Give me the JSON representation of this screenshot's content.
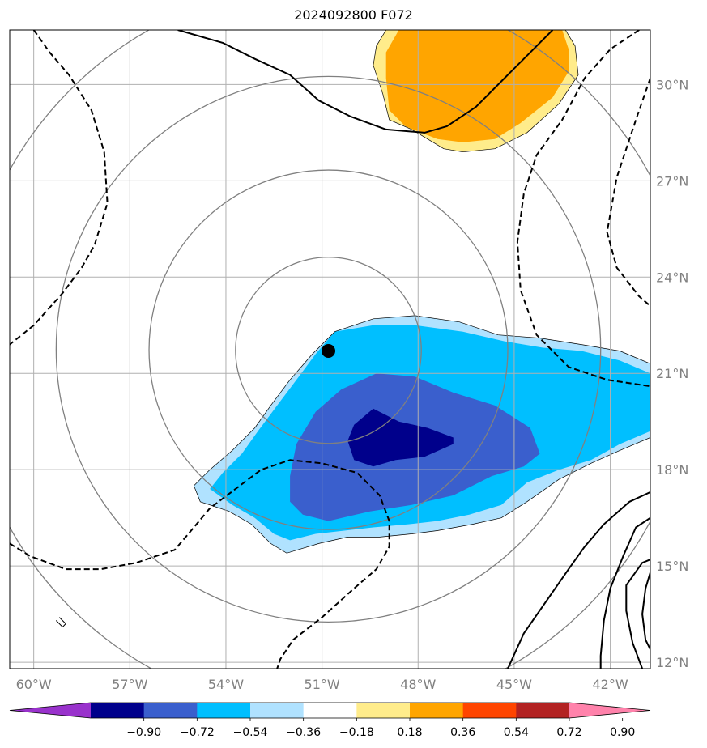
{
  "chart_data": {
    "type": "map-contour",
    "title": "2024092800 F072",
    "x_axis": {
      "range_deg": [
        -60.75,
        -40.75
      ],
      "ticks": [
        {
          "value": -60,
          "label": "60°W"
        },
        {
          "value": -57,
          "label": "57°W"
        },
        {
          "value": -54,
          "label": "54°W"
        },
        {
          "value": -51,
          "label": "51°W"
        },
        {
          "value": -48,
          "label": "48°W"
        },
        {
          "value": -45,
          "label": "45°W"
        },
        {
          "value": -42,
          "label": "42°W"
        }
      ]
    },
    "y_axis": {
      "range_deg": [
        11.8,
        31.7
      ],
      "ticks": [
        {
          "value": 12,
          "label": "12°N"
        },
        {
          "value": 15,
          "label": "15°N"
        },
        {
          "value": 18,
          "label": "18°N"
        },
        {
          "value": 21,
          "label": "21°N"
        },
        {
          "value": 24,
          "label": "24°N"
        },
        {
          "value": 27,
          "label": "27°N"
        },
        {
          "value": 30,
          "label": "30°N"
        }
      ],
      "labels_side": "right"
    },
    "grid": true,
    "center_marker": {
      "lon": -50.8,
      "lat": 21.7
    },
    "range_rings_deg": [
      2.9,
      5.6,
      8.5,
      11.4
    ],
    "colorbar": {
      "orientation": "horizontal",
      "extend": "both",
      "levels": [
        -0.9,
        -0.72,
        -0.54,
        -0.36,
        -0.18,
        0.18,
        0.36,
        0.54,
        0.72,
        0.9
      ],
      "tick_labels": [
        "−0.90",
        "−0.72",
        "−0.54",
        "−0.36",
        "−0.18",
        "0.18",
        "0.36",
        "0.54",
        "0.72",
        "0.90"
      ],
      "colors": [
        "#9932cc",
        "#00008b",
        "#3a5fcd",
        "#00bfff",
        "#b0e2ff",
        "#ffffff",
        "#ffec8b",
        "#ffa500",
        "#ff4500",
        "#b22222",
        "#ff82ab"
      ]
    },
    "filled_regions": [
      {
        "level": "-0.36 to -0.18",
        "color": "#b0e2ff",
        "polygon": [
          [
            -55.0,
            17.5
          ],
          [
            -54.5,
            18.0
          ],
          [
            -53.8,
            18.6
          ],
          [
            -53.1,
            19.3
          ],
          [
            -52.6,
            20.0
          ],
          [
            -52.0,
            20.8
          ],
          [
            -51.3,
            21.6
          ],
          [
            -50.6,
            22.3
          ],
          [
            -49.4,
            22.7
          ],
          [
            -48.1,
            22.8
          ],
          [
            -46.7,
            22.6
          ],
          [
            -45.5,
            22.2
          ],
          [
            -44.2,
            22.1
          ],
          [
            -42.9,
            21.9
          ],
          [
            -41.7,
            21.7
          ],
          [
            -40.75,
            21.3
          ],
          [
            -40.75,
            19.0
          ],
          [
            -41.7,
            18.6
          ],
          [
            -42.6,
            18.2
          ],
          [
            -43.6,
            17.7
          ],
          [
            -44.6,
            17.0
          ],
          [
            -45.4,
            16.5
          ],
          [
            -46.3,
            16.3
          ],
          [
            -47.4,
            16.1
          ],
          [
            -48.2,
            16.0
          ],
          [
            -49.2,
            15.9
          ],
          [
            -50.2,
            15.9
          ],
          [
            -51.1,
            15.7
          ],
          [
            -52.1,
            15.4
          ],
          [
            -52.6,
            15.7
          ],
          [
            -53.2,
            16.3
          ],
          [
            -53.9,
            16.7
          ],
          [
            -54.8,
            17.0
          ]
        ]
      },
      {
        "level": "-0.54 to -0.36",
        "color": "#00bfff",
        "polygon": [
          [
            -54.5,
            17.4
          ],
          [
            -54.1,
            17.9
          ],
          [
            -53.5,
            18.5
          ],
          [
            -53.0,
            19.2
          ],
          [
            -52.4,
            20.0
          ],
          [
            -51.8,
            20.8
          ],
          [
            -51.2,
            21.6
          ],
          [
            -50.6,
            22.3
          ],
          [
            -49.4,
            22.5
          ],
          [
            -48.1,
            22.5
          ],
          [
            -46.6,
            22.3
          ],
          [
            -45.3,
            22.0
          ],
          [
            -44.1,
            21.8
          ],
          [
            -42.9,
            21.7
          ],
          [
            -41.7,
            21.4
          ],
          [
            -40.75,
            21.0
          ],
          [
            -40.75,
            19.2
          ],
          [
            -41.7,
            18.8
          ],
          [
            -42.6,
            18.3
          ],
          [
            -43.6,
            18.0
          ],
          [
            -44.6,
            17.6
          ],
          [
            -45.4,
            16.9
          ],
          [
            -46.4,
            16.6
          ],
          [
            -47.4,
            16.4
          ],
          [
            -48.3,
            16.3
          ],
          [
            -49.4,
            16.2
          ],
          [
            -50.3,
            16.1
          ],
          [
            -51.2,
            16.0
          ],
          [
            -52.0,
            15.8
          ],
          [
            -52.5,
            16.0
          ],
          [
            -53.1,
            16.5
          ],
          [
            -53.8,
            16.9
          ]
        ]
      },
      {
        "level": "-0.72 to -0.54",
        "color": "#3a5fcd",
        "polygon": [
          [
            -52.0,
            17.8
          ],
          [
            -51.8,
            18.8
          ],
          [
            -51.2,
            19.8
          ],
          [
            -50.4,
            20.5
          ],
          [
            -49.3,
            21.0
          ],
          [
            -48.1,
            20.9
          ],
          [
            -46.9,
            20.4
          ],
          [
            -45.6,
            20.0
          ],
          [
            -44.5,
            19.3
          ],
          [
            -44.2,
            18.5
          ],
          [
            -44.7,
            18.1
          ],
          [
            -45.7,
            17.8
          ],
          [
            -46.9,
            17.2
          ],
          [
            -48.2,
            16.9
          ],
          [
            -49.5,
            16.7
          ],
          [
            -50.8,
            16.4
          ],
          [
            -51.6,
            16.6
          ],
          [
            -52.0,
            17.0
          ]
        ]
      },
      {
        "level": "-0.90 to -0.72",
        "color": "#00008b",
        "polygon": [
          [
            -50.0,
            19.4
          ],
          [
            -49.4,
            19.9
          ],
          [
            -48.6,
            19.5
          ],
          [
            -47.7,
            19.3
          ],
          [
            -46.9,
            19.0
          ],
          [
            -46.9,
            18.8
          ],
          [
            -47.8,
            18.4
          ],
          [
            -48.7,
            18.3
          ],
          [
            -49.4,
            18.1
          ],
          [
            -50.0,
            18.3
          ],
          [
            -50.2,
            18.9
          ]
        ]
      },
      {
        "level": "0.18 to 0.36",
        "color": "#ffec8b",
        "polygon": [
          [
            -49.0,
            31.7
          ],
          [
            -43.4,
            31.7
          ],
          [
            -43.1,
            31.2
          ],
          [
            -43.0,
            30.3
          ],
          [
            -43.6,
            29.4
          ],
          [
            -44.6,
            28.5
          ],
          [
            -45.6,
            28.0
          ],
          [
            -46.6,
            27.9
          ],
          [
            -47.2,
            28.0
          ],
          [
            -48.2,
            28.6
          ],
          [
            -48.9,
            28.9
          ],
          [
            -49.1,
            29.7
          ],
          [
            -49.4,
            30.6
          ],
          [
            -49.3,
            31.2
          ]
        ]
      },
      {
        "level": "0.36 to 0.54",
        "color": "#ffa500",
        "polygon": [
          [
            -48.6,
            31.7
          ],
          [
            -43.5,
            31.7
          ],
          [
            -43.3,
            31.1
          ],
          [
            -43.3,
            30.4
          ],
          [
            -43.8,
            29.6
          ],
          [
            -44.8,
            28.8
          ],
          [
            -45.6,
            28.3
          ],
          [
            -46.6,
            28.2
          ],
          [
            -47.4,
            28.3
          ],
          [
            -48.4,
            28.7
          ],
          [
            -48.9,
            29.2
          ],
          [
            -49.0,
            30.2
          ],
          [
            -49.0,
            31.0
          ]
        ]
      }
    ],
    "line_contours": [
      {
        "style": "solid",
        "points": [
          [
            -55.5,
            31.7
          ],
          [
            -54.1,
            31.3
          ],
          [
            -53.1,
            30.8
          ],
          [
            -52.0,
            30.3
          ],
          [
            -51.1,
            29.5
          ],
          [
            -50.1,
            29.0
          ],
          [
            -49.0,
            28.6
          ],
          [
            -47.8,
            28.5
          ],
          [
            -47.1,
            28.7
          ],
          [
            -46.2,
            29.3
          ],
          [
            -45.3,
            30.2
          ],
          [
            -44.5,
            31.0
          ],
          [
            -43.8,
            31.7
          ]
        ]
      },
      {
        "style": "solid",
        "points": [
          [
            -41.0,
            11.8
          ],
          [
            -41.3,
            12.6
          ],
          [
            -41.5,
            13.6
          ],
          [
            -41.5,
            14.4
          ],
          [
            -41.0,
            15.1
          ],
          [
            -40.75,
            15.2
          ]
        ]
      },
      {
        "style": "solid",
        "points": [
          [
            -40.75,
            17.3
          ],
          [
            -41.4,
            17.0
          ],
          [
            -42.2,
            16.3
          ],
          [
            -42.8,
            15.6
          ],
          [
            -43.3,
            14.9
          ],
          [
            -44.0,
            13.9
          ],
          [
            -44.7,
            12.9
          ],
          [
            -45.2,
            11.8
          ]
        ]
      },
      {
        "style": "solid",
        "points": [
          [
            -40.75,
            16.5
          ],
          [
            -41.2,
            16.2
          ],
          [
            -41.6,
            15.3
          ],
          [
            -42.0,
            14.3
          ],
          [
            -42.2,
            13.3
          ],
          [
            -42.3,
            12.2
          ],
          [
            -42.3,
            11.8
          ]
        ]
      },
      {
        "style": "solid",
        "points": [
          [
            -40.75,
            14.8
          ],
          [
            -40.9,
            14.3
          ],
          [
            -41.0,
            13.5
          ],
          [
            -40.9,
            12.7
          ],
          [
            -40.75,
            12.4
          ]
        ]
      },
      {
        "style": "dashed",
        "points": [
          [
            -60.0,
            31.7
          ],
          [
            -59.5,
            31.0
          ],
          [
            -58.9,
            30.3
          ],
          [
            -58.2,
            29.2
          ],
          [
            -57.8,
            27.9
          ],
          [
            -57.7,
            26.3
          ],
          [
            -58.1,
            25.0
          ],
          [
            -58.5,
            24.3
          ],
          [
            -59.1,
            23.5
          ],
          [
            -60.0,
            22.5
          ],
          [
            -60.75,
            21.9
          ]
        ]
      },
      {
        "style": "dashed",
        "points": [
          [
            -60.75,
            15.7
          ],
          [
            -60.1,
            15.3
          ],
          [
            -59.0,
            14.9
          ],
          [
            -57.9,
            14.9
          ],
          [
            -56.8,
            15.1
          ],
          [
            -55.6,
            15.5
          ],
          [
            -55.0,
            16.2
          ],
          [
            -54.5,
            16.8
          ],
          [
            -53.7,
            17.4
          ],
          [
            -52.9,
            18.0
          ],
          [
            -52.0,
            18.3
          ],
          [
            -51.0,
            18.2
          ],
          [
            -49.9,
            17.9
          ],
          [
            -49.2,
            17.2
          ],
          [
            -48.9,
            16.4
          ],
          [
            -48.9,
            15.6
          ],
          [
            -49.3,
            14.9
          ],
          [
            -50.0,
            14.3
          ],
          [
            -51.0,
            13.4
          ],
          [
            -51.9,
            12.7
          ],
          [
            -52.3,
            12.1
          ],
          [
            -52.4,
            11.8
          ]
        ]
      },
      {
        "style": "dashed",
        "points": [
          [
            -41.1,
            31.7
          ],
          [
            -42.0,
            31.1
          ],
          [
            -42.8,
            30.2
          ],
          [
            -43.5,
            28.9
          ],
          [
            -44.3,
            27.8
          ],
          [
            -44.7,
            26.6
          ],
          [
            -44.9,
            25.1
          ],
          [
            -44.8,
            23.6
          ],
          [
            -44.3,
            22.2
          ],
          [
            -43.3,
            21.2
          ],
          [
            -42.1,
            20.8
          ],
          [
            -40.75,
            20.6
          ]
        ]
      },
      {
        "style": "dashed",
        "points": [
          [
            -40.75,
            30.2
          ],
          [
            -41.2,
            28.9
          ],
          [
            -41.8,
            27.1
          ],
          [
            -42.1,
            25.4
          ],
          [
            -41.8,
            24.3
          ],
          [
            -41.1,
            23.4
          ],
          [
            -40.75,
            23.1
          ]
        ]
      },
      {
        "style": "thin",
        "points": [
          [
            -59.3,
            13.3
          ],
          [
            -59.1,
            13.1
          ],
          [
            -59.0,
            13.2
          ],
          [
            -59.2,
            13.4
          ]
        ]
      }
    ]
  }
}
